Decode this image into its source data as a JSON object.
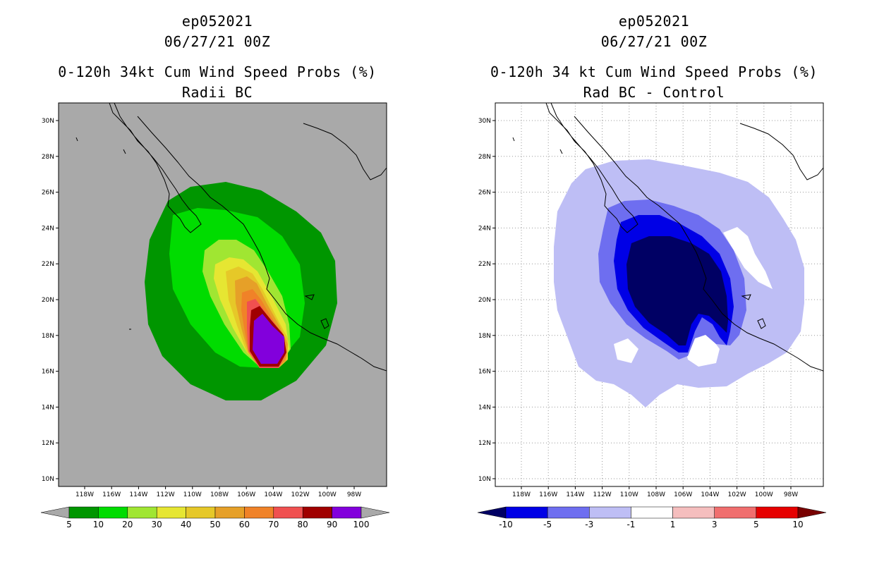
{
  "left": {
    "storm_id": "ep052021",
    "datetime": "06/27/21 00Z",
    "title": "0-120h 34kt Cum Wind Speed Probs (%)",
    "subtitle": "Radii BC",
    "background_color": "#a9a9a9",
    "colorbar": {
      "labels": [
        "5",
        "10",
        "20",
        "30",
        "40",
        "50",
        "60",
        "70",
        "80",
        "90",
        "100"
      ],
      "colors": [
        "#009600",
        "#00dc00",
        "#a0e632",
        "#e6e632",
        "#e6c828",
        "#e6a028",
        "#f08228",
        "#f05050",
        "#a00000",
        "#8200dc"
      ],
      "under_color": "#a9a9a9",
      "over_color": "#a9a9a9"
    }
  },
  "right": {
    "storm_id": "ep052021",
    "datetime": "06/27/21 00Z",
    "title": "0-120h 34 kt Cum Wind Speed Probs (%)",
    "subtitle": "Rad BC - Control",
    "background_color": "#ffffff",
    "colorbar": {
      "labels": [
        "-10",
        "-5",
        "-3",
        "-1",
        "1",
        "3",
        "5",
        "10"
      ],
      "colors": [
        "#0000e6",
        "#6e6ef0",
        "#bebef5",
        "#ffffff",
        "#f5bebe",
        "#f06e6e",
        "#e60000"
      ],
      "under_color": "#000064",
      "over_color": "#780000"
    }
  },
  "axes": {
    "lon_labels": [
      "118W",
      "116W",
      "114W",
      "112W",
      "110W",
      "108W",
      "106W",
      "104W",
      "102W",
      "100W",
      "98W"
    ],
    "lat_labels": [
      "10N",
      "12N",
      "14N",
      "16N",
      "18N",
      "20N",
      "22N",
      "24N",
      "26N",
      "28N",
      "30N"
    ]
  }
}
